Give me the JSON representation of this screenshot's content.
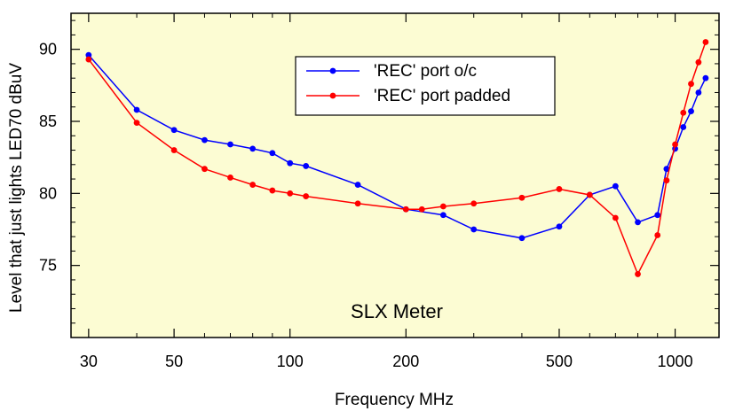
{
  "chart_data": {
    "type": "line",
    "title": "",
    "xlabel": "Frequency MHz",
    "ylabel": "Level that just lights LED70  dBuV",
    "xscale": "log",
    "xlim": [
      27,
      1300
    ],
    "ylim": [
      70,
      92.5
    ],
    "xticks": [
      30,
      50,
      100,
      200,
      500,
      1000
    ],
    "xtick_labels": [
      "30",
      "50",
      "100",
      "200",
      "500",
      "1000"
    ],
    "yticks": [
      75,
      80,
      85,
      90
    ],
    "ytick_labels": [
      "75",
      "80",
      "85",
      "90"
    ],
    "annotation": "SLX Meter",
    "legend_position": "upper-center",
    "background": "#fcfcd3",
    "series": [
      {
        "name": "'REC' port o/c",
        "color": "#0000ff",
        "x": [
          30,
          40,
          50,
          60,
          70,
          80,
          90,
          100,
          110,
          150,
          200,
          250,
          300,
          400,
          500,
          600,
          700,
          800,
          900,
          950,
          1000,
          1050,
          1100,
          1150,
          1200
        ],
        "y": [
          89.6,
          85.8,
          84.4,
          83.7,
          83.4,
          83.1,
          82.8,
          82.1,
          81.9,
          80.6,
          78.9,
          78.5,
          77.5,
          76.9,
          77.7,
          79.9,
          80.5,
          78.0,
          78.5,
          81.7,
          83.1,
          84.6,
          85.7,
          87.0,
          88.0
        ]
      },
      {
        "name": "'REC' port padded",
        "color": "#ff0000",
        "x": [
          30,
          40,
          50,
          60,
          70,
          80,
          90,
          100,
          110,
          150,
          200,
          220,
          250,
          300,
          400,
          500,
          600,
          700,
          800,
          900,
          950,
          1000,
          1050,
          1100,
          1150,
          1200
        ],
        "y": [
          89.3,
          84.9,
          83.0,
          81.7,
          81.1,
          80.6,
          80.2,
          80.0,
          79.8,
          79.3,
          78.9,
          78.9,
          79.1,
          79.3,
          79.7,
          80.3,
          79.9,
          78.3,
          74.4,
          77.1,
          80.9,
          83.4,
          85.6,
          87.6,
          89.1,
          90.5
        ]
      }
    ]
  }
}
